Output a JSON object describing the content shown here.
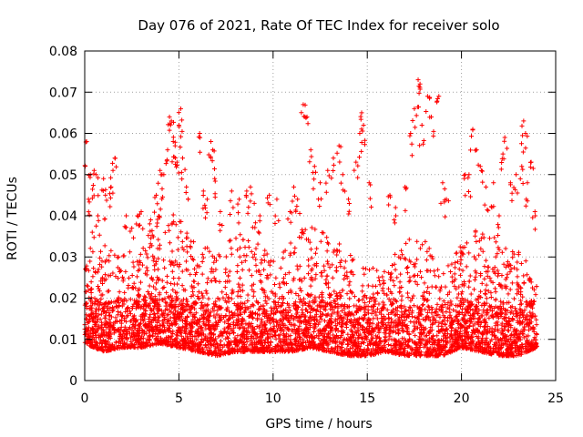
{
  "chart_data": {
    "type": "scatter",
    "title": "Day 076 of 2021, Rate Of TEC Index for receiver solo",
    "xlabel": "GPS time / hours",
    "ylabel": "ROTI / TECUs",
    "xlim": [
      0,
      25
    ],
    "ylim": [
      0,
      0.08
    ],
    "x_ticks": [
      0,
      5,
      10,
      15,
      20,
      25
    ],
    "x_tick_labels": [
      "0",
      "5",
      "10",
      "15",
      "20",
      "25"
    ],
    "y_ticks": [
      0,
      0.01,
      0.02,
      0.03,
      0.04,
      0.05,
      0.06,
      0.07,
      0.08
    ],
    "y_tick_labels": [
      "0",
      "0.01",
      "0.02",
      "0.03",
      "0.04",
      "0.05",
      "0.06",
      "0.07",
      "0.08"
    ],
    "grid": true,
    "marker": "+",
    "color": "#ff0000",
    "series": [
      {
        "name": "ROTI",
        "points": [
          [
            0.1,
            0.058
          ],
          [
            0.2,
            0.044
          ],
          [
            0.3,
            0.05
          ],
          [
            0.5,
            0.051
          ],
          [
            0.6,
            0.05
          ],
          [
            0.4,
            0.036
          ],
          [
            0.7,
            0.04
          ],
          [
            1.0,
            0.049
          ],
          [
            1.1,
            0.045
          ],
          [
            1.5,
            0.051
          ],
          [
            1.6,
            0.054
          ],
          [
            1.4,
            0.047
          ],
          [
            2.2,
            0.04
          ],
          [
            2.5,
            0.037
          ],
          [
            2.8,
            0.04
          ],
          [
            3.0,
            0.041
          ],
          [
            3.5,
            0.039
          ],
          [
            3.8,
            0.045
          ],
          [
            4.0,
            0.051
          ],
          [
            4.2,
            0.05
          ],
          [
            4.4,
            0.056
          ],
          [
            4.5,
            0.064
          ],
          [
            4.6,
            0.063
          ],
          [
            4.7,
            0.058
          ],
          [
            4.8,
            0.057
          ],
          [
            4.9,
            0.053
          ],
          [
            5.1,
            0.066
          ],
          [
            5.2,
            0.054
          ],
          [
            5.4,
            0.047
          ],
          [
            5.0,
            0.062
          ],
          [
            6.1,
            0.06
          ],
          [
            6.3,
            0.046
          ],
          [
            6.5,
            0.044
          ],
          [
            6.7,
            0.058
          ],
          [
            6.8,
            0.056
          ],
          [
            6.9,
            0.049
          ],
          [
            7.2,
            0.041
          ],
          [
            7.8,
            0.046
          ],
          [
            8.2,
            0.044
          ],
          [
            8.6,
            0.046
          ],
          [
            8.8,
            0.047
          ],
          [
            9.0,
            0.043
          ],
          [
            9.3,
            0.04
          ],
          [
            9.8,
            0.045
          ],
          [
            10.2,
            0.044
          ],
          [
            10.9,
            0.041
          ],
          [
            11.1,
            0.047
          ],
          [
            11.3,
            0.044
          ],
          [
            11.6,
            0.067
          ],
          [
            11.8,
            0.064
          ],
          [
            12.0,
            0.056
          ],
          [
            12.2,
            0.052
          ],
          [
            12.5,
            0.048
          ],
          [
            12.9,
            0.051
          ],
          [
            13.2,
            0.054
          ],
          [
            13.5,
            0.057
          ],
          [
            13.7,
            0.05
          ],
          [
            14.0,
            0.044
          ],
          [
            14.4,
            0.053
          ],
          [
            14.6,
            0.06
          ],
          [
            14.7,
            0.065
          ],
          [
            14.8,
            0.062
          ],
          [
            15.1,
            0.048
          ],
          [
            16.2,
            0.045
          ],
          [
            16.5,
            0.042
          ],
          [
            17.0,
            0.047
          ],
          [
            17.3,
            0.06
          ],
          [
            17.5,
            0.066
          ],
          [
            17.7,
            0.073
          ],
          [
            17.8,
            0.072
          ],
          [
            17.9,
            0.062
          ],
          [
            18.2,
            0.069
          ],
          [
            18.4,
            0.064
          ],
          [
            18.8,
            0.069
          ],
          [
            19.0,
            0.048
          ],
          [
            19.2,
            0.044
          ],
          [
            20.2,
            0.05
          ],
          [
            20.4,
            0.05
          ],
          [
            20.6,
            0.061
          ],
          [
            20.8,
            0.056
          ],
          [
            21.0,
            0.052
          ],
          [
            21.3,
            0.047
          ],
          [
            21.7,
            0.048
          ],
          [
            22.0,
            0.04
          ],
          [
            22.2,
            0.055
          ],
          [
            22.3,
            0.059
          ],
          [
            22.6,
            0.048
          ],
          [
            22.9,
            0.05
          ],
          [
            23.3,
            0.063
          ],
          [
            23.4,
            0.06
          ],
          [
            23.2,
            0.052
          ],
          [
            23.7,
            0.053
          ],
          [
            23.5,
            0.048
          ],
          [
            23.9,
            0.041
          ]
        ]
      }
    ],
    "dense_band": {
      "description": "Dense cloud of points across 0-24 h",
      "x_range": [
        0,
        24
      ],
      "envelope": [
        [
          0,
          0.009,
          0.028
        ],
        [
          1,
          0.007,
          0.033
        ],
        [
          2,
          0.008,
          0.031
        ],
        [
          3,
          0.008,
          0.032
        ],
        [
          4,
          0.009,
          0.042
        ],
        [
          5,
          0.008,
          0.04
        ],
        [
          6,
          0.007,
          0.034
        ],
        [
          7,
          0.006,
          0.031
        ],
        [
          8,
          0.007,
          0.036
        ],
        [
          9,
          0.007,
          0.034
        ],
        [
          10,
          0.007,
          0.031
        ],
        [
          11,
          0.007,
          0.035
        ],
        [
          12,
          0.008,
          0.038
        ],
        [
          13,
          0.007,
          0.035
        ],
        [
          14,
          0.006,
          0.032
        ],
        [
          15,
          0.006,
          0.028
        ],
        [
          16,
          0.007,
          0.027
        ],
        [
          17,
          0.006,
          0.036
        ],
        [
          18,
          0.006,
          0.035
        ],
        [
          19,
          0.006,
          0.026
        ],
        [
          20,
          0.008,
          0.033
        ],
        [
          21,
          0.007,
          0.038
        ],
        [
          22,
          0.006,
          0.034
        ],
        [
          23,
          0.006,
          0.032
        ],
        [
          24,
          0.008,
          0.025
        ]
      ]
    }
  }
}
